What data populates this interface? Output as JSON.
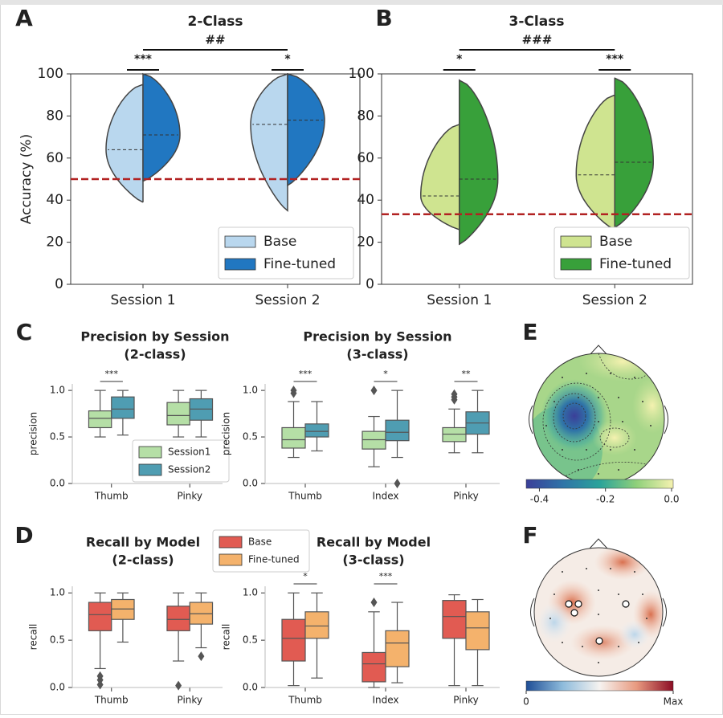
{
  "chart_data": [
    {
      "type": "violin",
      "panel": "A",
      "title": "2-Class",
      "ylabel": "Accuracy (%)",
      "categories": [
        "Session 1",
        "Session 2"
      ],
      "series": [
        {
          "name": "Base",
          "color": "#b9d7ee",
          "values": [
            64,
            76
          ],
          "min": [
            39,
            35
          ],
          "max": [
            95,
            100
          ]
        },
        {
          "name": "Fine-tuned",
          "color": "#2177c1",
          "values": [
            71,
            78
          ],
          "min": [
            49,
            47
          ],
          "max": [
            100,
            100
          ]
        }
      ],
      "ylim": [
        0,
        100
      ],
      "yticks": [
        0,
        20,
        40,
        60,
        80,
        100
      ],
      "reference_line": 50,
      "reference_color": "#b22222",
      "significance": [
        "***",
        "*"
      ],
      "between_categories": "##",
      "legend": "lower right"
    },
    {
      "type": "violin",
      "panel": "B",
      "title": "3-Class",
      "categories": [
        "Session 1",
        "Session 2"
      ],
      "series": [
        {
          "name": "Base",
          "color": "#cfe490",
          "values": [
            42,
            52
          ],
          "min": [
            26,
            26
          ],
          "max": [
            76,
            90
          ]
        },
        {
          "name": "Fine-tuned",
          "color": "#38a03a",
          "values": [
            50,
            58
          ],
          "min": [
            19,
            27
          ],
          "max": [
            97,
            98
          ]
        }
      ],
      "ylim": [
        0,
        100
      ],
      "yticks": [
        0,
        20,
        40,
        60,
        80,
        100
      ],
      "reference_line": 33.3,
      "reference_color": "#b22222",
      "significance": [
        "*",
        "***"
      ],
      "between_categories": "###",
      "legend": "lower right"
    },
    {
      "type": "box",
      "panel": "C",
      "title": "Precision by Session",
      "subtitle": "(2-class)",
      "ylabel": "precision",
      "categories": [
        "Thumb",
        "Pinky"
      ],
      "series": [
        {
          "name": "Session1",
          "color": "#b5dfa6",
          "whisker_low": [
            0.5,
            0.5
          ],
          "q1": [
            0.6,
            0.63
          ],
          "median": [
            0.7,
            0.73
          ],
          "q3": [
            0.78,
            0.87
          ],
          "whisker_high": [
            1.0,
            1.0
          ],
          "outliers": [
            [],
            []
          ]
        },
        {
          "name": "Session2",
          "color": "#4f9db2",
          "whisker_low": [
            0.52,
            0.5
          ],
          "q1": [
            0.7,
            0.68
          ],
          "median": [
            0.8,
            0.8
          ],
          "q3": [
            0.93,
            0.91
          ],
          "whisker_high": [
            1.0,
            1.0
          ],
          "outliers": [
            [],
            []
          ]
        }
      ],
      "ylim": [
        0,
        1.07
      ],
      "yticks": [
        {
          "value": 0,
          "label": "0.0"
        },
        {
          "value": 0.5,
          "label": "0.5"
        },
        {
          "value": 1,
          "label": "1.0"
        }
      ],
      "significance": [
        "***",
        null
      ],
      "legend": "lower right"
    },
    {
      "type": "box",
      "panel": null,
      "title": "Precision by Session",
      "subtitle": "(3-class)",
      "ylabel": "precision",
      "categories": [
        "Thumb",
        "Index",
        "Pinky"
      ],
      "series": [
        {
          "name": "Session1",
          "color": "#b5dfa6",
          "whisker_low": [
            0.28,
            0.18,
            0.33
          ],
          "q1": [
            0.38,
            0.37,
            0.45
          ],
          "median": [
            0.47,
            0.47,
            0.53
          ],
          "q3": [
            0.6,
            0.56,
            0.6
          ],
          "whisker_high": [
            0.88,
            0.72,
            0.8
          ],
          "outliers": [
            [
              0.97,
              1.0
            ],
            [
              1.0
            ],
            [
              0.9,
              0.93,
              0.96
            ]
          ]
        },
        {
          "name": "Session2",
          "color": "#4f9db2",
          "whisker_low": [
            0.35,
            0.28,
            0.33
          ],
          "q1": [
            0.5,
            0.46,
            0.53
          ],
          "median": [
            0.56,
            0.55,
            0.65
          ],
          "q3": [
            0.64,
            0.68,
            0.77
          ],
          "whisker_high": [
            0.88,
            1.0,
            1.0
          ],
          "outliers": [
            [],
            [
              0.0
            ],
            []
          ]
        }
      ],
      "ylim": [
        0,
        1.07
      ],
      "yticks": [
        {
          "value": 0,
          "label": "0.0"
        },
        {
          "value": 0.5,
          "label": "0.5"
        },
        {
          "value": 1,
          "label": "1.0"
        }
      ],
      "significance": [
        "***",
        "*",
        "**"
      ]
    },
    {
      "type": "box",
      "panel": "D",
      "title": "Recall by Model",
      "subtitle": "(2-class)",
      "ylabel": "recall",
      "categories": [
        "Thumb",
        "Pinky"
      ],
      "series": [
        {
          "name": "Base",
          "color": "#e15b52",
          "whisker_low": [
            0.2,
            0.28
          ],
          "q1": [
            0.6,
            0.6
          ],
          "median": [
            0.77,
            0.72
          ],
          "q3": [
            0.9,
            0.86
          ],
          "whisker_high": [
            1.0,
            1.0
          ],
          "outliers": [
            [
              0.03,
              0.08,
              0.12
            ],
            [
              0.02
            ]
          ]
        },
        {
          "name": "Fine-tuned",
          "color": "#f4b26c",
          "whisker_low": [
            0.48,
            0.42
          ],
          "q1": [
            0.72,
            0.67
          ],
          "median": [
            0.83,
            0.78
          ],
          "q3": [
            0.93,
            0.9
          ],
          "whisker_high": [
            1.0,
            1.0
          ],
          "outliers": [
            [],
            [
              0.33
            ]
          ]
        }
      ],
      "ylim": [
        0,
        1.07
      ],
      "yticks": [
        {
          "value": 0,
          "label": "0.0"
        },
        {
          "value": 0.5,
          "label": "0.5"
        },
        {
          "value": 1,
          "label": "1.0"
        }
      ],
      "significance": [
        null,
        null
      ],
      "legend": "above"
    },
    {
      "type": "box",
      "panel": null,
      "title": "Recall by Model",
      "subtitle": "(3-class)",
      "ylabel": "recall",
      "categories": [
        "Thumb",
        "Index",
        "Pinky"
      ],
      "series": [
        {
          "name": "Base",
          "color": "#e15b52",
          "whisker_low": [
            0.02,
            0.0,
            0.02
          ],
          "q1": [
            0.28,
            0.06,
            0.52
          ],
          "median": [
            0.52,
            0.25,
            0.75
          ],
          "q3": [
            0.72,
            0.37,
            0.92
          ],
          "whisker_high": [
            1.0,
            0.8,
            0.98
          ],
          "outliers": [
            [],
            [
              0.9
            ],
            []
          ]
        },
        {
          "name": "Fine-tuned",
          "color": "#f4b26c",
          "whisker_low": [
            0.1,
            0.05,
            0.02
          ],
          "q1": [
            0.52,
            0.22,
            0.4
          ],
          "median": [
            0.65,
            0.47,
            0.63
          ],
          "q3": [
            0.8,
            0.6,
            0.8
          ],
          "whisker_high": [
            1.0,
            0.9,
            0.93
          ],
          "outliers": [
            [],
            [],
            []
          ]
        }
      ],
      "ylim": [
        0,
        1.07
      ],
      "yticks": [
        {
          "value": 0,
          "label": "0.0"
        },
        {
          "value": 0.5,
          "label": "0.5"
        },
        {
          "value": 1,
          "label": "1.0"
        }
      ],
      "significance": [
        "*",
        "***",
        null
      ]
    },
    {
      "type": "topomap",
      "panel": "E",
      "colorbar_lim": [
        -0.44,
        0.005
      ],
      "colorbar_ticks": [
        -0.4,
        -0.2,
        {
          "value": 0,
          "label": "0.0"
        }
      ]
    },
    {
      "type": "topomap",
      "panel": "F",
      "colorbar_lim": [
        0,
        1
      ],
      "colorbar_ticks": [
        0,
        {
          "value": 1,
          "label": "Max"
        }
      ]
    }
  ]
}
